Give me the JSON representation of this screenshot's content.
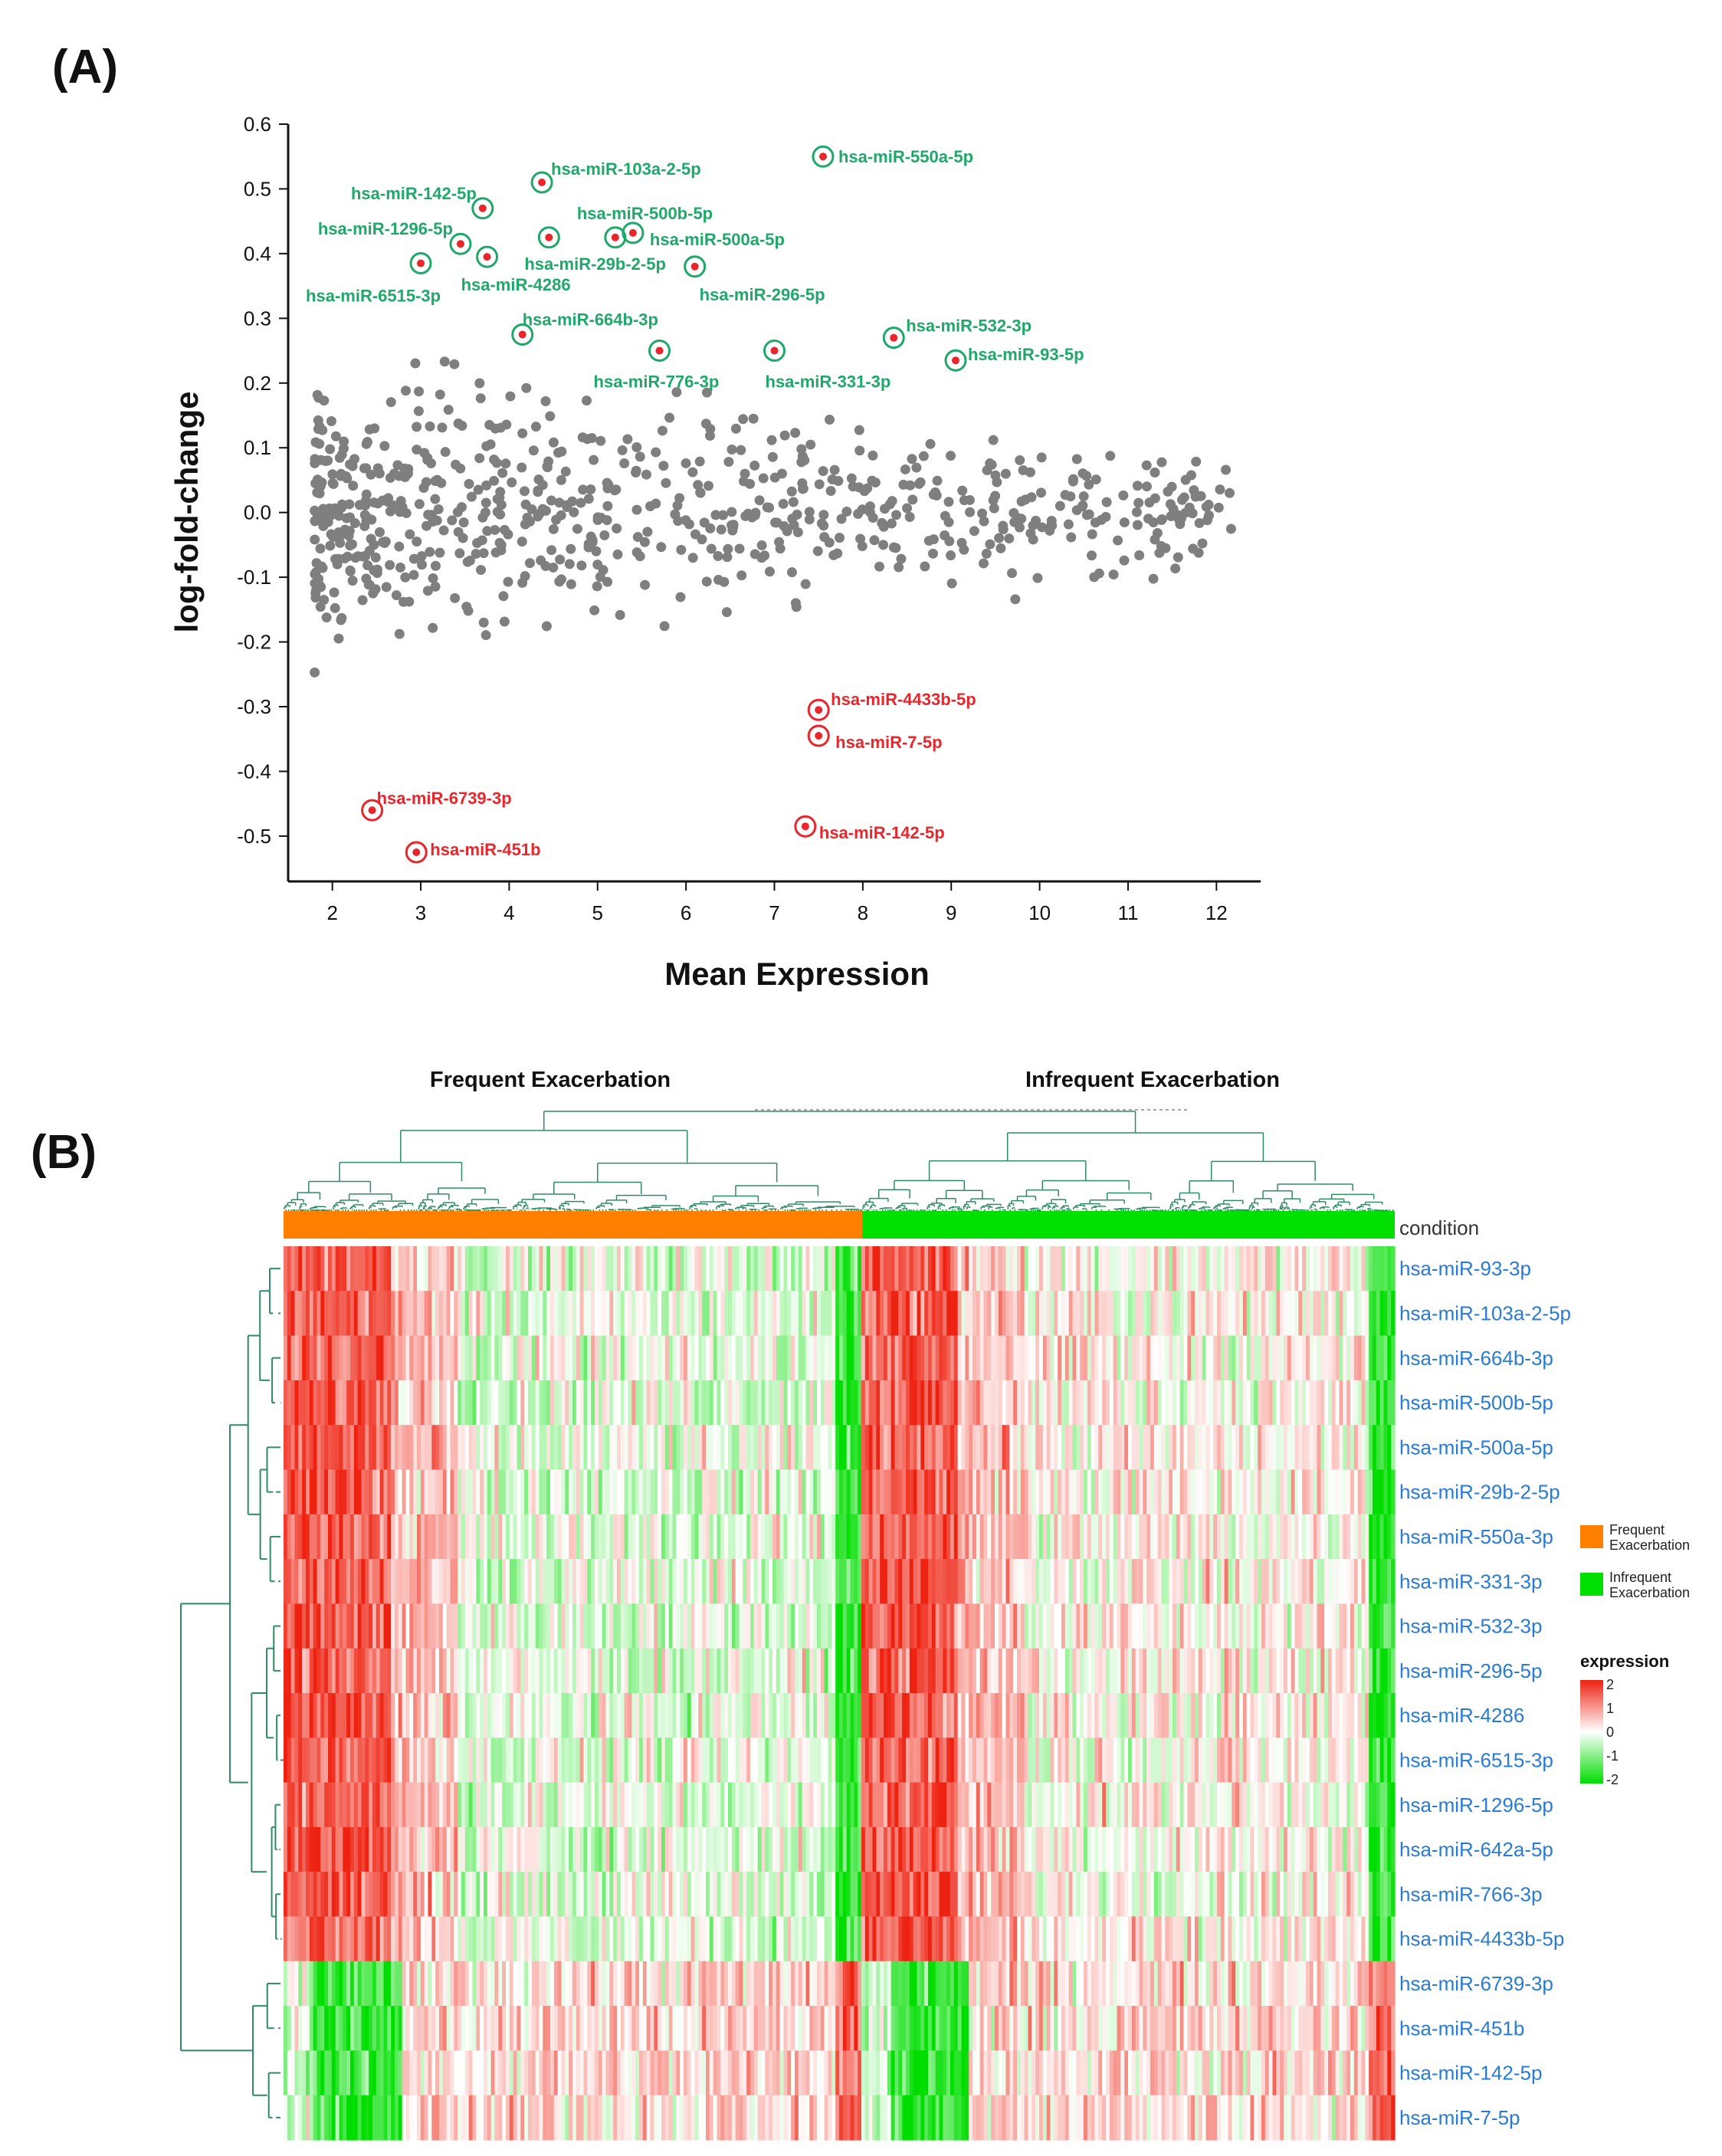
{
  "panels": {
    "a_label": "(A)",
    "b_label": "(B)"
  },
  "chart_data": [
    {
      "type": "scatter",
      "panel": "A",
      "title": "",
      "xlabel": "Mean Expression",
      "ylabel": "log-fold-change",
      "xlim": [
        1.5,
        12.5
      ],
      "ylim": [
        -0.57,
        0.6
      ],
      "xticks": [
        "2",
        "3",
        "4",
        "5",
        "6",
        "7",
        "8",
        "9",
        "10",
        "11",
        "12"
      ],
      "yticks": [
        "0.6",
        "0.5",
        "0.4",
        "0.3",
        "0.2",
        "0.1",
        "0.0",
        "-0.1",
        "-0.2",
        "-0.3",
        "-0.4",
        "-0.5"
      ],
      "colors": {
        "point": "#7f7f7f",
        "up": "#1fa86a",
        "down": "#e8262c",
        "dot": "#e8262c"
      },
      "highlighted_up": [
        {
          "label": "hsa-miR-550a-5p",
          "x": 7.55,
          "y": 0.55
        },
        {
          "label": "hsa-miR-103a-2-5p",
          "x": 4.37,
          "y": 0.51
        },
        {
          "label": "hsa-miR-142-5p",
          "x": 3.7,
          "y": 0.47
        },
        {
          "label": "hsa-miR-500b-5p",
          "x": 5.2,
          "y": 0.425
        },
        {
          "label": "hsa-miR-500a-5p",
          "x": 5.4,
          "y": 0.432
        },
        {
          "label": "hsa-miR-1296-5p",
          "x": 3.45,
          "y": 0.415
        },
        {
          "label": "hsa-miR-29b-2-5p",
          "x": 4.45,
          "y": 0.425
        },
        {
          "label": "hsa-miR-296-5p",
          "x": 6.1,
          "y": 0.38
        },
        {
          "label": "hsa-miR-6515-3p",
          "x": 3.0,
          "y": 0.385
        },
        {
          "label": "hsa-miR-4286",
          "x": 3.75,
          "y": 0.395
        },
        {
          "label": "hsa-miR-664b-3p",
          "x": 4.15,
          "y": 0.275
        },
        {
          "label": "hsa-miR-776-3p",
          "x": 5.7,
          "y": 0.25
        },
        {
          "label": "hsa-miR-331-3p",
          "x": 7.0,
          "y": 0.25
        },
        {
          "label": "hsa-miR-532-3p",
          "x": 8.35,
          "y": 0.27
        },
        {
          "label": "hsa-miR-93-5p",
          "x": 9.05,
          "y": 0.235
        }
      ],
      "highlighted_down": [
        {
          "label": "hsa-miR-4433b-5p",
          "x": 7.5,
          "y": -0.305
        },
        {
          "label": "hsa-miR-7-5p",
          "x": 7.5,
          "y": -0.345
        },
        {
          "label": "hsa-miR-6739-3p",
          "x": 2.45,
          "y": -0.46
        },
        {
          "label": "hsa-miR-451b",
          "x": 2.95,
          "y": -0.525
        },
        {
          "label": "hsa-miR-142-5p",
          "x": 7.35,
          "y": -0.485
        }
      ]
    },
    {
      "type": "heatmap",
      "panel": "B",
      "group_labels": [
        "Frequent Exacerbation",
        "Infrequent Exacerbation"
      ],
      "annotation_label": "condition",
      "rows": [
        "hsa-miR-93-3p",
        "hsa-miR-103a-2-5p",
        "hsa-miR-664b-3p",
        "hsa-miR-500b-5p",
        "hsa-miR-500a-5p",
        "hsa-miR-29b-2-5p",
        "hsa-miR-550a-3p",
        "hsa-miR-331-3p",
        "hsa-miR-532-3p",
        "hsa-miR-296-5p",
        "hsa-miR-4286",
        "hsa-miR-6515-3p",
        "hsa-miR-1296-5p",
        "hsa-miR-642a-5p",
        "hsa-miR-766-3p",
        "hsa-miR-4433b-5p",
        "hsa-miR-6739-3p",
        "hsa-miR-451b",
        "hsa-miR-142-5p",
        "hsa-miR-7-5p"
      ],
      "legend": {
        "conditions": [
          "Frequent Exacerbation",
          "Infrequent Exacerbation"
        ],
        "condition_colors": [
          "#ff8000",
          "#00e000"
        ],
        "scale_title": "expression",
        "scale_ticks": [
          "2",
          "1",
          "0",
          "-1",
          "-2"
        ],
        "low_color": "#00dd00",
        "mid_color": "#ffffff",
        "high_color": "#ee2211"
      }
    }
  ]
}
